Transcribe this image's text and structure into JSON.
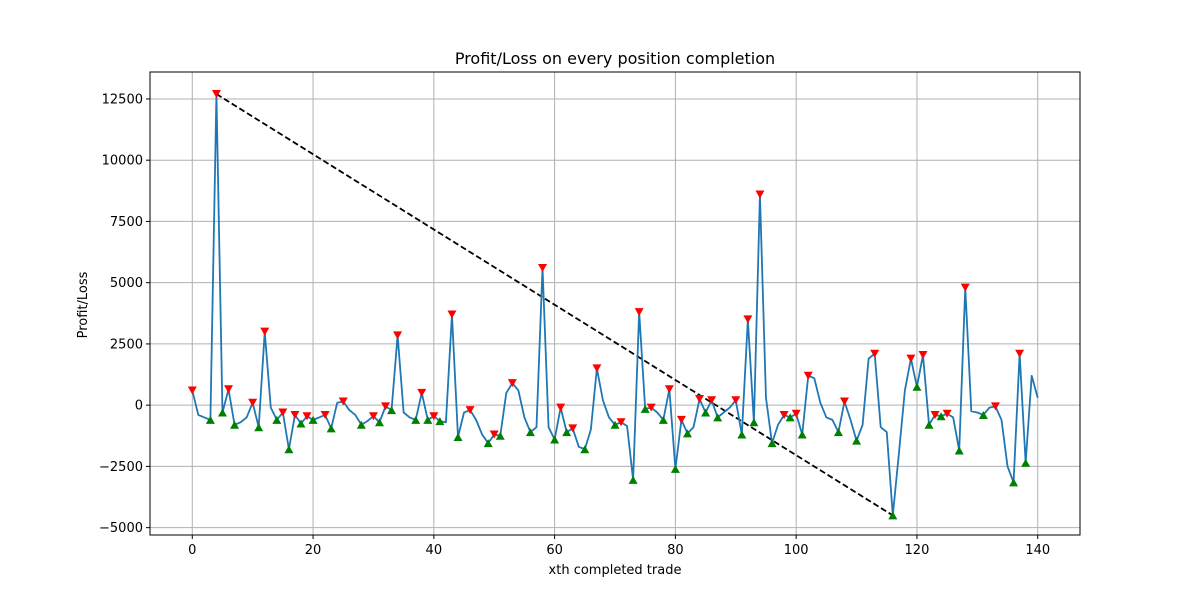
{
  "chart_data": {
    "type": "line",
    "title": "Profit/Loss on every position completion",
    "xlabel": "xth completed trade",
    "ylabel": "Profit/Loss",
    "xlim": [
      -7,
      147
    ],
    "ylim": [
      -5300,
      13600
    ],
    "xticks": [
      0,
      20,
      40,
      60,
      80,
      100,
      120,
      140
    ],
    "yticks": [
      -5000,
      -2500,
      0,
      2500,
      5000,
      7500,
      10000,
      12500
    ],
    "grid": true,
    "line_color": "#1f77b4",
    "peak_color": "#ff0000",
    "trough_color": "#008000",
    "drawdown_color": "#000000",
    "series": [
      {
        "x": [
          0,
          1,
          2,
          3,
          4,
          5,
          6,
          7,
          8,
          9,
          10,
          11,
          12,
          13,
          14,
          15,
          16,
          17,
          18,
          19,
          20,
          21,
          22,
          23,
          24,
          25,
          26,
          27,
          28,
          29,
          30,
          31,
          32,
          33,
          34,
          35,
          36,
          37,
          38,
          39,
          40,
          41,
          42,
          43,
          44,
          45,
          46,
          47,
          48,
          49,
          50,
          51,
          52,
          53,
          54,
          55,
          56,
          57,
          58,
          59,
          60,
          61,
          62,
          63,
          64,
          65,
          66,
          67,
          68,
          69,
          70,
          71,
          72,
          73,
          74,
          75,
          76,
          77,
          78,
          79,
          80,
          81,
          82,
          83,
          84,
          85,
          86,
          87,
          88,
          89,
          90,
          91,
          92,
          93,
          94,
          95,
          96,
          97,
          98,
          99,
          100,
          101,
          102,
          103,
          104,
          105,
          106,
          107,
          108,
          109,
          110,
          111,
          112,
          113,
          114,
          115,
          116,
          117,
          118,
          119,
          120,
          121,
          122,
          123,
          124,
          125,
          126,
          127,
          128,
          129,
          130,
          131,
          132,
          133,
          134,
          135,
          136,
          137,
          138,
          139,
          140
        ],
        "y": [
          600,
          -400,
          -500,
          -600,
          12700,
          -300,
          650,
          -800,
          -700,
          -500,
          100,
          -900,
          3000,
          -100,
          -600,
          -300,
          -1800,
          -400,
          -750,
          -450,
          -600,
          -500,
          -400,
          -950,
          100,
          150,
          -200,
          -400,
          -800,
          -650,
          -450,
          -700,
          -50,
          -200,
          2850,
          -300,
          -500,
          -600,
          500,
          -600,
          -450,
          -650,
          -700,
          3700,
          -1300,
          -300,
          -200,
          -600,
          -1200,
          -1550,
          -1200,
          -1250,
          500,
          900,
          600,
          -500,
          -1100,
          -900,
          5600,
          -900,
          -1400,
          -100,
          -1100,
          -950,
          -1700,
          -1800,
          -1000,
          1500,
          200,
          -500,
          -800,
          -700,
          -850,
          -3050,
          3800,
          -150,
          -100,
          -300,
          -600,
          650,
          -2600,
          -600,
          -1150,
          -900,
          250,
          -300,
          200,
          -500,
          -300,
          -100,
          200,
          -1200,
          3500,
          -700,
          8600,
          300,
          -1550,
          -800,
          -400,
          -500,
          -350,
          -1200,
          1200,
          1100,
          100,
          -500,
          -600,
          -1100,
          150,
          -600,
          -1450,
          -800,
          1900,
          2100,
          -900,
          -1100,
          -4500,
          -2000,
          600,
          1900,
          750,
          2050,
          -800,
          -400,
          -450,
          -350,
          -500,
          -1850,
          4800,
          -250,
          -300,
          -400,
          -100,
          -50,
          -600,
          -2500,
          -3150,
          2100,
          -2350,
          1200,
          300
        ]
      }
    ],
    "peaks": {
      "x": [
        0,
        4,
        6,
        10,
        12,
        15,
        17,
        19,
        22,
        25,
        30,
        32,
        34,
        38,
        40,
        43,
        46,
        50,
        53,
        58,
        61,
        63,
        67,
        71,
        74,
        76,
        79,
        81,
        84,
        86,
        90,
        92,
        94,
        98,
        100,
        102,
        108,
        113,
        119,
        121,
        123,
        125,
        128,
        133,
        137
      ],
      "y": [
        600,
        12700,
        650,
        100,
        3000,
        -300,
        -400,
        -450,
        -400,
        150,
        -450,
        -50,
        2850,
        500,
        -450,
        3700,
        -200,
        -1200,
        900,
        5600,
        -100,
        -950,
        1500,
        -700,
        3800,
        -100,
        650,
        -600,
        250,
        200,
        200,
        3500,
        8600,
        -400,
        -350,
        1200,
        150,
        2100,
        1900,
        2050,
        -400,
        -350,
        4800,
        -50,
        2100
      ]
    },
    "troughs": {
      "x": [
        3,
        5,
        7,
        11,
        14,
        16,
        18,
        20,
        23,
        28,
        31,
        33,
        37,
        39,
        41,
        44,
        49,
        51,
        56,
        60,
        62,
        65,
        70,
        73,
        75,
        78,
        80,
        82,
        85,
        87,
        91,
        93,
        96,
        99,
        101,
        107,
        110,
        116,
        120,
        122,
        124,
        127,
        131,
        136,
        138
      ],
      "y": [
        -600,
        -300,
        -800,
        -900,
        -600,
        -1800,
        -750,
        -600,
        -950,
        -800,
        -700,
        -200,
        -600,
        -600,
        -650,
        -1300,
        -1550,
        -1250,
        -1100,
        -1400,
        -1100,
        -1800,
        -800,
        -3050,
        -150,
        -600,
        -2600,
        -1150,
        -300,
        -500,
        -1200,
        -700,
        -1550,
        -500,
        -1200,
        -1100,
        -1450,
        -4500,
        750,
        -800,
        -450,
        -1850,
        -400,
        -3150,
        -2350
      ]
    },
    "max_drawdown": {
      "x": [
        4,
        116
      ],
      "y": [
        12700,
        -4500
      ]
    }
  }
}
